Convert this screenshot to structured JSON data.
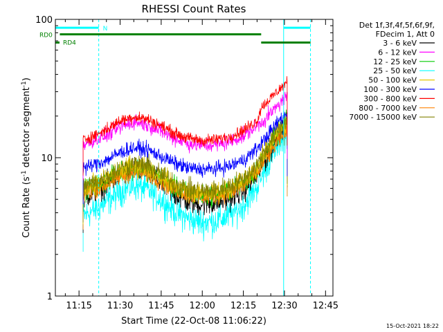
{
  "chart_data": {
    "type": "line",
    "title": "RHESSI Count Rates",
    "xlabel": "Start Time (22-Oct-08 11:06:22)",
    "ylabel_main": "Count Rate (s",
    "ylabel_sup": "-1",
    "ylabel_tail": " detector segment",
    "ylabel_close": ")",
    "y_scale": "log",
    "ylim": [
      1,
      100
    ],
    "xlim_minutes": [
      6.37,
      47.7
    ],
    "x_ticks": [
      {
        "min": 15,
        "label": "11:15"
      },
      {
        "min": 30,
        "label": "11:30"
      },
      {
        "min": 45,
        "label": "11:45"
      },
      {
        "min": 60,
        "label": "12:00"
      },
      {
        "min": 75,
        "label": "12:15"
      },
      {
        "min": 90,
        "label": "12:30"
      },
      {
        "min": 105,
        "label": "12:45"
      }
    ],
    "y_ticks": [
      {
        "v": 1,
        "label": "1"
      },
      {
        "v": 10,
        "label": "10"
      },
      {
        "v": 100,
        "label": "100"
      }
    ],
    "legend": {
      "position": "right",
      "header": [
        "Det 1f,3f,4f,5f,6f,9f,",
        "FDecim 1, Att 0"
      ],
      "entries": [
        {
          "label": "3 - 6 keV",
          "color": "#000000"
        },
        {
          "label": "6 - 12 keV",
          "color": "#ff00ff"
        },
        {
          "label": "12 - 25 keV",
          "color": "#00cc00"
        },
        {
          "label": "25 - 50 keV",
          "color": "#00ffff"
        },
        {
          "label": "50 - 100 keV",
          "color": "#e6c800"
        },
        {
          "label": "100 - 300 keV",
          "color": "#0000ff"
        },
        {
          "label": "300 - 800 keV",
          "color": "#ff0000"
        },
        {
          "label": "800 - 7000 keV",
          "color": "#ff8000"
        },
        {
          "label": "7000 - 15000 keV",
          "color": "#808000"
        }
      ]
    },
    "series": [
      {
        "name": "3 - 6 keV",
        "color": "#000000",
        "noise": 0.08,
        "points": [
          [
            16.5,
            5.2
          ],
          [
            20,
            5.6
          ],
          [
            25,
            6.4
          ],
          [
            30,
            7.6
          ],
          [
            35,
            8.3
          ],
          [
            40,
            7.9
          ],
          [
            45,
            6.6
          ],
          [
            50,
            5.4
          ],
          [
            55,
            4.8
          ],
          [
            60,
            4.6
          ],
          [
            65,
            4.7
          ],
          [
            70,
            5.1
          ],
          [
            75,
            5.8
          ],
          [
            80,
            7.5
          ],
          [
            85,
            11.5
          ],
          [
            88,
            15
          ],
          [
            91,
            17.5
          ]
        ]
      },
      {
        "name": "6 - 12 keV",
        "color": "#ff00ff",
        "noise": 0.05,
        "points": [
          [
            16.5,
            12.5
          ],
          [
            20,
            13.2
          ],
          [
            25,
            14.5
          ],
          [
            30,
            16.5
          ],
          [
            35,
            18.2
          ],
          [
            40,
            17.3
          ],
          [
            45,
            15.5
          ],
          [
            50,
            13.8
          ],
          [
            55,
            12.6
          ],
          [
            60,
            12.2
          ],
          [
            65,
            12.4
          ],
          [
            70,
            13
          ],
          [
            75,
            14.3
          ],
          [
            80,
            17
          ],
          [
            83,
            19
          ],
          [
            86,
            22
          ],
          [
            91,
            28
          ]
        ]
      },
      {
        "name": "12 - 25 keV",
        "color": "#00cc00",
        "noise": 0.07,
        "points": [
          [
            16.5,
            5.8
          ],
          [
            20,
            6.1
          ],
          [
            25,
            6.8
          ],
          [
            30,
            7.9
          ],
          [
            35,
            8.5
          ],
          [
            40,
            8.2
          ],
          [
            45,
            7.1
          ],
          [
            50,
            6.1
          ],
          [
            55,
            5.5
          ],
          [
            60,
            5.3
          ],
          [
            65,
            5.4
          ],
          [
            70,
            5.8
          ],
          [
            75,
            6.5
          ],
          [
            80,
            8.2
          ],
          [
            85,
            12.5
          ],
          [
            88,
            15.5
          ],
          [
            91,
            18.5
          ]
        ]
      },
      {
        "name": "25 - 50 keV",
        "color": "#00ffff",
        "noise": 0.1,
        "points": [
          [
            16.5,
            3.8
          ],
          [
            20,
            4.1
          ],
          [
            25,
            4.8
          ],
          [
            30,
            5.7
          ],
          [
            35,
            6.3
          ],
          [
            40,
            5.9
          ],
          [
            45,
            5
          ],
          [
            50,
            4.1
          ],
          [
            55,
            3.6
          ],
          [
            60,
            3.4
          ],
          [
            65,
            3.5
          ],
          [
            70,
            3.8
          ],
          [
            75,
            4.5
          ],
          [
            80,
            6.2
          ],
          [
            85,
            10
          ],
          [
            88,
            13
          ],
          [
            91,
            15
          ]
        ]
      },
      {
        "name": "50 - 100 keV",
        "color": "#e6c800",
        "noise": 0.07,
        "points": [
          [
            16.5,
            6
          ],
          [
            20,
            6.3
          ],
          [
            25,
            7
          ],
          [
            30,
            8.1
          ],
          [
            35,
            8.8
          ],
          [
            40,
            8.5
          ],
          [
            45,
            7.4
          ],
          [
            50,
            6.3
          ],
          [
            55,
            5.7
          ],
          [
            60,
            5.5
          ],
          [
            65,
            5.6
          ],
          [
            70,
            6
          ],
          [
            75,
            6.8
          ],
          [
            80,
            8.6
          ],
          [
            85,
            13
          ],
          [
            88,
            16
          ],
          [
            91,
            18
          ]
        ]
      },
      {
        "name": "100 - 300 keV",
        "color": "#0000ff",
        "noise": 0.05,
        "points": [
          [
            16.5,
            8.4
          ],
          [
            20,
            8.8
          ],
          [
            25,
            9.6
          ],
          [
            30,
            10.9
          ],
          [
            35,
            11.8
          ],
          [
            40,
            11.4
          ],
          [
            45,
            10.2
          ],
          [
            50,
            9.1
          ],
          [
            55,
            8.4
          ],
          [
            60,
            8.2
          ],
          [
            65,
            8.3
          ],
          [
            70,
            8.7
          ],
          [
            75,
            9.6
          ],
          [
            80,
            11.6
          ],
          [
            85,
            15.5
          ],
          [
            88,
            18.5
          ],
          [
            91,
            21
          ]
        ]
      },
      {
        "name": "300 - 800 keV",
        "color": "#ff0000",
        "noise": 0.04,
        "points": [
          [
            16.5,
            13.5
          ],
          [
            20,
            14.3
          ],
          [
            25,
            16
          ],
          [
            30,
            18.5
          ],
          [
            35,
            19.8
          ],
          [
            40,
            19
          ],
          [
            45,
            17
          ],
          [
            50,
            15
          ],
          [
            55,
            13.8
          ],
          [
            60,
            13.3
          ],
          [
            65,
            13.5
          ],
          [
            70,
            14.2
          ],
          [
            75,
            15.8
          ],
          [
            80,
            18.5
          ],
          [
            81.5,
            23
          ],
          [
            85,
            27
          ],
          [
            88,
            31
          ],
          [
            91,
            35
          ]
        ]
      },
      {
        "name": "800 - 7000 keV",
        "color": "#ff8000",
        "noise": 0.06,
        "points": [
          [
            16.5,
            5.5
          ],
          [
            20,
            5.8
          ],
          [
            25,
            6.4
          ],
          [
            30,
            7.3
          ],
          [
            35,
            7.9
          ],
          [
            40,
            7.6
          ],
          [
            45,
            6.7
          ],
          [
            50,
            5.9
          ],
          [
            55,
            5.4
          ],
          [
            60,
            5.2
          ],
          [
            65,
            5.3
          ],
          [
            70,
            5.6
          ],
          [
            75,
            6.2
          ],
          [
            80,
            7.8
          ],
          [
            85,
            11
          ],
          [
            88,
            13.5
          ],
          [
            91,
            15
          ]
        ]
      },
      {
        "name": "7000 - 15000 keV",
        "color": "#808000",
        "noise": 0.07,
        "points": [
          [
            16.5,
            6.2
          ],
          [
            20,
            6.5
          ],
          [
            25,
            7.2
          ],
          [
            30,
            8.3
          ],
          [
            35,
            9
          ],
          [
            40,
            8.7
          ],
          [
            45,
            7.6
          ],
          [
            50,
            6.5
          ],
          [
            55,
            5.9
          ],
          [
            60,
            5.7
          ],
          [
            65,
            5.8
          ],
          [
            70,
            6.2
          ],
          [
            75,
            7
          ],
          [
            80,
            8.8
          ],
          [
            85,
            13.2
          ],
          [
            88,
            16.2
          ],
          [
            91,
            18.5
          ]
        ]
      }
    ],
    "annotations": {
      "flag_rd0": {
        "label": "RD0",
        "color": "#008000",
        "y": 78,
        "x_range": [
          8,
          81.5
        ]
      },
      "flag_rd4": {
        "label": "RD4",
        "color": "#008000",
        "y": 68,
        "x_range": [
          81.5,
          99.5
        ]
      },
      "flag_n": {
        "label": "N",
        "color": "#00ffff",
        "y": 87,
        "x_ranges": [
          [
            6.37,
            22.2
          ],
          [
            89.7,
            99.5
          ]
        ]
      },
      "vlines_solid": {
        "color": "#00ffff",
        "x": [
          6.37,
          89.7
        ]
      },
      "vlines_dashed": {
        "color": "#00ffff",
        "x": [
          22.2,
          99.5
        ]
      }
    }
  },
  "footer": {
    "timestamp": "15-Oct-2021 18:22"
  }
}
